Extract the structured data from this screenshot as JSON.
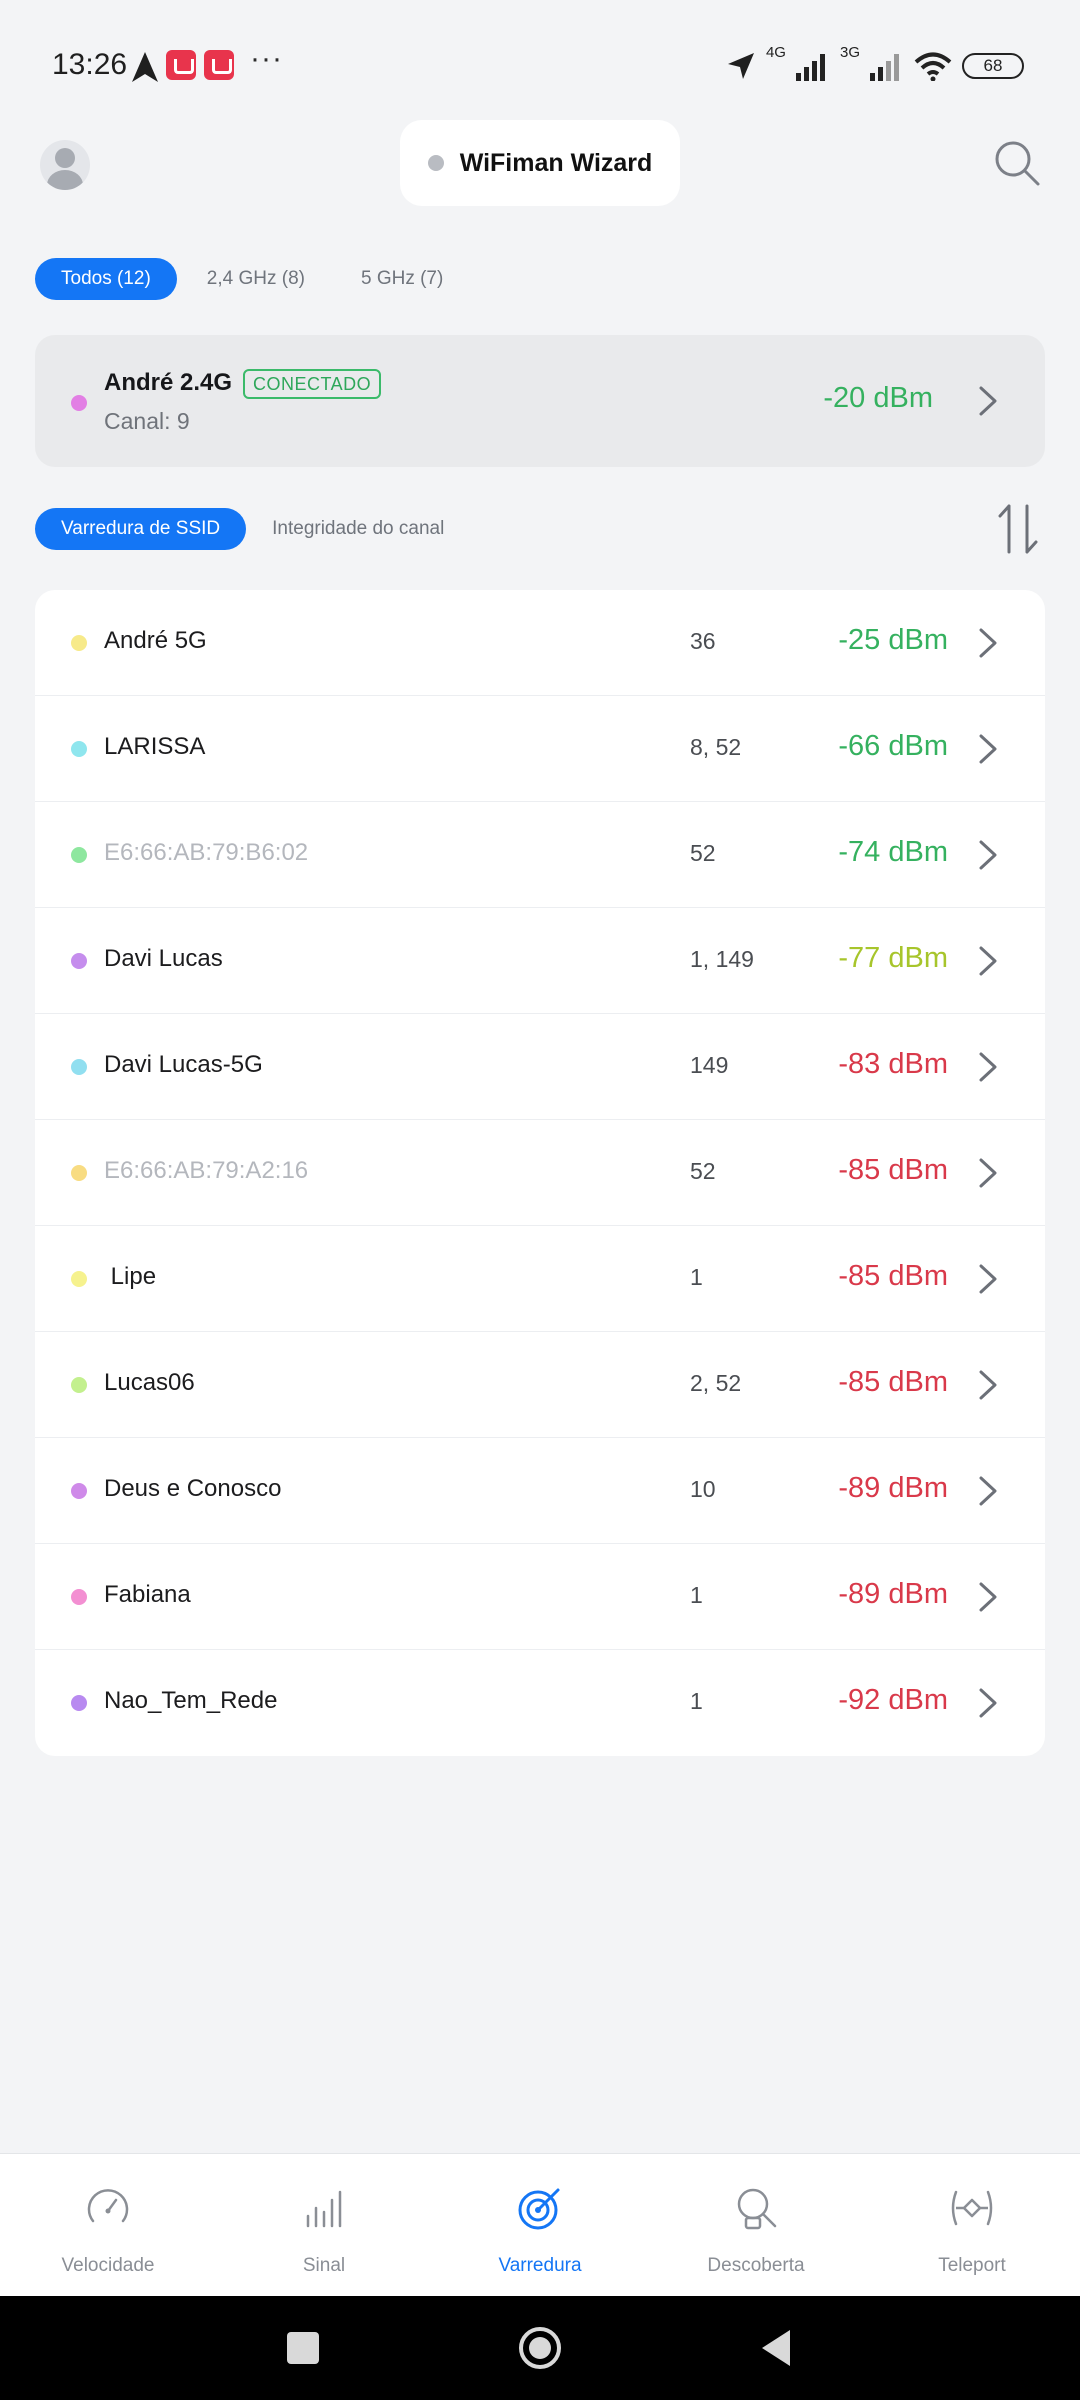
{
  "status_bar": {
    "time": "13:26",
    "network_1": "4G",
    "network_2": "3G",
    "battery": "68"
  },
  "header": {
    "title": "WiFiman Wizard"
  },
  "band_filter": {
    "chips": [
      "Todos (12)",
      "2,4 GHz (8)",
      "5 GHz (7)"
    ],
    "selected_index": 0
  },
  "connected": {
    "name": "André 2.4G",
    "badge": "CONECTADO",
    "channel": "Canal: 9",
    "signal": "-20 dBm",
    "dot_color": "#e27fe4",
    "signal_color": "#35b15f"
  },
  "view_tabs": {
    "tabs": [
      "Varredura de SSID",
      "Integridade do canal"
    ],
    "selected_index": 0
  },
  "networks": [
    {
      "name": "André 5G",
      "channel": "36",
      "signal": "-25 dBm",
      "dot_color": "#f7ea8a",
      "signal_color": "#35b15f",
      "hidden_ssid": false
    },
    {
      "name": "LARISSA",
      "channel": "8, 52",
      "signal": "-66 dBm",
      "dot_color": "#8fe6ee",
      "signal_color": "#35b15f",
      "hidden_ssid": false
    },
    {
      "name": "E6:66:AB:79:B6:02",
      "channel": "52",
      "signal": "-74 dBm",
      "dot_color": "#8ee79f",
      "signal_color": "#35b15f",
      "hidden_ssid": true
    },
    {
      "name": "Davi Lucas",
      "channel": "1, 149",
      "signal": "-77 dBm",
      "dot_color": "#c58ded",
      "signal_color": "#a7c52b",
      "hidden_ssid": false
    },
    {
      "name": "Davi Lucas-5G",
      "channel": "149",
      "signal": "-83 dBm",
      "dot_color": "#91dff0",
      "signal_color": "#d9394a",
      "hidden_ssid": false
    },
    {
      "name": "E6:66:AB:79:A2:16",
      "channel": "52",
      "signal": "-85 dBm",
      "dot_color": "#f8dc82",
      "signal_color": "#d9394a",
      "hidden_ssid": true
    },
    {
      "name": " Lipe",
      "channel": "1",
      "signal": "-85 dBm",
      "dot_color": "#f6f28e",
      "signal_color": "#d9394a",
      "hidden_ssid": false
    },
    {
      "name": "Lucas06",
      "channel": "2, 52",
      "signal": "-85 dBm",
      "dot_color": "#c3f08e",
      "signal_color": "#d9394a",
      "hidden_ssid": false
    },
    {
      "name": "Deus e Conosco",
      "channel": "10",
      "signal": "-89 dBm",
      "dot_color": "#cf8ae9",
      "signal_color": "#d9394a",
      "hidden_ssid": false
    },
    {
      "name": "Fabiana",
      "channel": "1",
      "signal": "-89 dBm",
      "dot_color": "#f38fd2",
      "signal_color": "#d9394a",
      "hidden_ssid": false
    },
    {
      "name": "Nao_Tem_Rede",
      "channel": "1",
      "signal": "-92 dBm",
      "dot_color": "#b88af0",
      "signal_color": "#d9394a",
      "hidden_ssid": false
    }
  ],
  "bottom_nav": [
    {
      "label": "Velocidade",
      "icon": "speedometer-icon"
    },
    {
      "label": "Sinal",
      "icon": "signal-bars-icon"
    },
    {
      "label": "Varredura",
      "icon": "radar-icon"
    },
    {
      "label": "Descoberta",
      "icon": "device-discovery-icon"
    },
    {
      "label": "Teleport",
      "icon": "teleport-icon"
    }
  ],
  "bottom_nav_selected_index": 2,
  "colors": {
    "accent": "#1476f5",
    "good_signal": "#35b15f",
    "fair_signal": "#a7c52b",
    "poor_signal": "#d9394a"
  }
}
